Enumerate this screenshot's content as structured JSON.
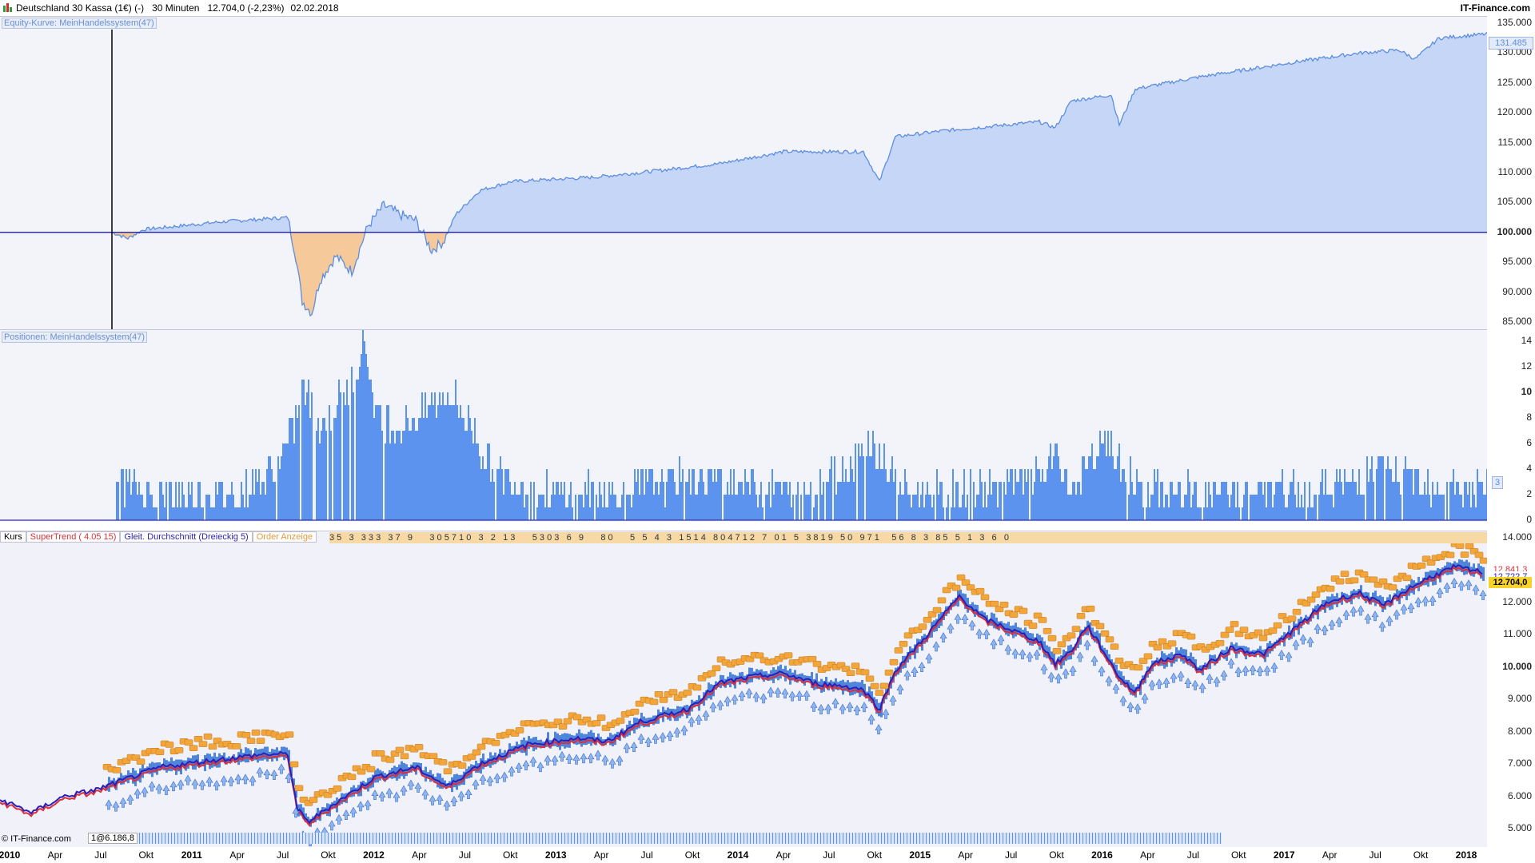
{
  "header": {
    "instrument": "Deutschland 30 Kassa (1€) (-)",
    "interval": "30 Minuten",
    "last_price": "12.704,0 (-2,23%)",
    "date": "02.02.2018",
    "brand": "IT-Finance.com"
  },
  "panes": {
    "equity": {
      "label": "Equity-Kurve: MeinHandelssystem(47)",
      "y_ticks": [
        "135.000",
        "130.000",
        "125.000",
        "120.000",
        "115.000",
        "110.000",
        "105.000",
        "100.000",
        "95.000",
        "90.000",
        "85.000"
      ],
      "current_value": "131.485",
      "fill_color": "#c6d6f7",
      "drawdown_color": "#f6c99b",
      "line_color": "#5b8de0"
    },
    "positions": {
      "label": "Positionen: MeinHandelssystem(47)",
      "y_ticks": [
        "14",
        "12",
        "10",
        "8",
        "6",
        "4",
        "2",
        "0"
      ],
      "current_value": "3",
      "bar_color": "#5b93ef"
    },
    "price": {
      "legend": [
        "Kurs",
        "SuperTrend ( 4.05 15)",
        "Gleit. Durchschnitt (Dreieckig 5)",
        "Order Anzeige"
      ],
      "y_ticks": [
        "14.000",
        "13.000",
        "12.000",
        "11.000",
        "10.000",
        "9.000",
        "8.000",
        "7.000",
        "6.000",
        "5.000"
      ],
      "supertrend_value": "12.841,3",
      "ma_value": "12.722,7",
      "last_value": "12.704,0",
      "footer_left": "© IT-Finance.com",
      "footer_order": "1@6.186,8",
      "order_strip_text": "3 5   3   3 3 3   3 7   9       3 0 5 7 1 0   3   2   1 3       5 3 0 3   6   9       8 0       5   5   4   3   1 5 1 4   8 0 4 7 1 2   7   0 1   5   3 8 1 9   5 0   9 7 1     5 6   8   3   8 5   5   1   3   6   0"
    }
  },
  "x_axis": [
    {
      "label": "2010",
      "year": true
    },
    {
      "label": "Apr",
      "year": false
    },
    {
      "label": "Jul",
      "year": false
    },
    {
      "label": "Okt",
      "year": false
    },
    {
      "label": "2011",
      "year": true
    },
    {
      "label": "Apr",
      "year": false
    },
    {
      "label": "Jul",
      "year": false
    },
    {
      "label": "Okt",
      "year": false
    },
    {
      "label": "2012",
      "year": true
    },
    {
      "label": "Apr",
      "year": false
    },
    {
      "label": "Jul",
      "year": false
    },
    {
      "label": "Okt",
      "year": false
    },
    {
      "label": "2013",
      "year": true
    },
    {
      "label": "Apr",
      "year": false
    },
    {
      "label": "Jul",
      "year": false
    },
    {
      "label": "Okt",
      "year": false
    },
    {
      "label": "2014",
      "year": true
    },
    {
      "label": "Apr",
      "year": false
    },
    {
      "label": "Jul",
      "year": false
    },
    {
      "label": "Okt",
      "year": false
    },
    {
      "label": "2015",
      "year": true
    },
    {
      "label": "Apr",
      "year": false
    },
    {
      "label": "Jul",
      "year": false
    },
    {
      "label": "Okt",
      "year": false
    },
    {
      "label": "2016",
      "year": true
    },
    {
      "label": "Apr",
      "year": false
    },
    {
      "label": "Jul",
      "year": false
    },
    {
      "label": "Okt",
      "year": false
    },
    {
      "label": "2017",
      "year": true
    },
    {
      "label": "Apr",
      "year": false
    },
    {
      "label": "Jul",
      "year": false
    },
    {
      "label": "Okt",
      "year": false
    },
    {
      "label": "2018",
      "year": true
    }
  ],
  "colors": {
    "supertrend": "#d9303a",
    "ma": "#2a1fb8",
    "order_box": "#f3a53a",
    "price_candle": "#4f86d9",
    "baseline": "#2c2fa0",
    "last_price_box": "#f7d22c"
  }
}
